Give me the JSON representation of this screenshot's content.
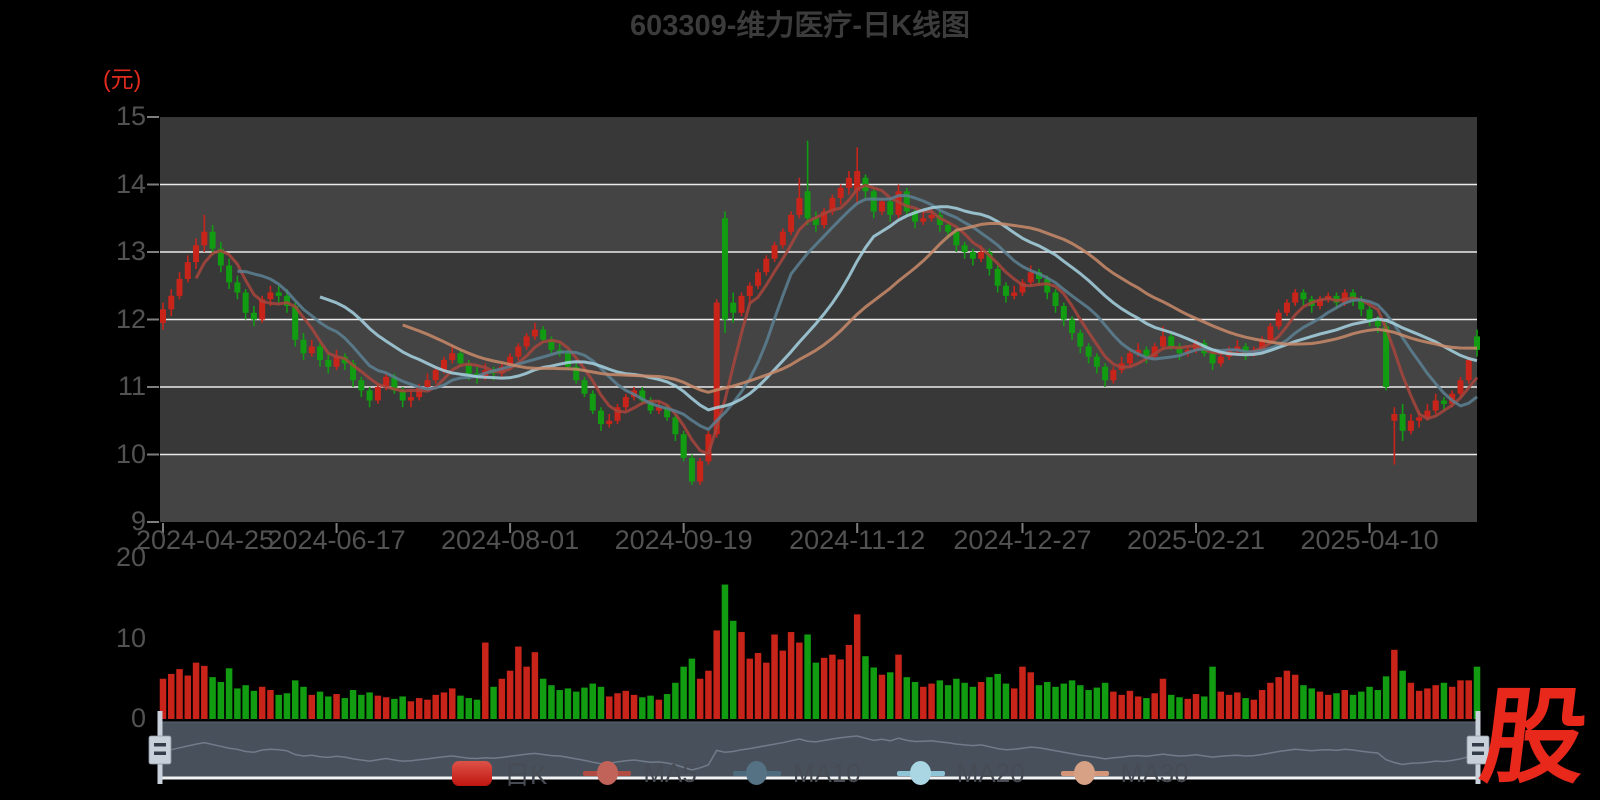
{
  "title": "603309-维力医疗-日K线图",
  "price_axis": {
    "unit_label": "(元)",
    "ticks": [
      15,
      14,
      13,
      12,
      11,
      10,
      9
    ]
  },
  "volume_axis": {
    "ticks": [
      20,
      10,
      0
    ]
  },
  "x_axis": {
    "tick_labels": [
      "2024-04-25",
      "2024-06-17",
      "2024-08-01",
      "2024-09-19",
      "2024-11-12",
      "2024-12-27",
      "2025-02-21",
      "2025-04-10"
    ],
    "tick_indices": [
      0,
      21,
      42,
      63,
      84,
      104,
      125,
      146
    ]
  },
  "legend": {
    "items": [
      {
        "label": "日K",
        "type": "candle",
        "swatch_colors": [
          "#dd5247",
          "#c01510"
        ]
      },
      {
        "label": "MA5",
        "type": "line",
        "line_color": "#b04c42",
        "dot_color": "#c2635a"
      },
      {
        "label": "MA10",
        "type": "line",
        "line_color": "#4e6b7e",
        "dot_color": "#557184"
      },
      {
        "label": "MA20",
        "type": "line",
        "line_color": "#8fc3d6",
        "dot_color": "#a9d6e2"
      },
      {
        "label": "MA30",
        "type": "line",
        "line_color": "#d39678",
        "dot_color": "#d6a184"
      }
    ]
  },
  "logo": {
    "text": "股",
    "color": "#e7281b"
  },
  "style": {
    "up_color": "#c9241a",
    "down_color": "#119c11",
    "band_dark": "#383838",
    "band_light": "#444444",
    "grid_color": "#ebebeb",
    "tick_color": "#7e7e7e",
    "axis_text_color": "#525252",
    "title_color": "#3b3b3b",
    "unit_color": "#e22b1c",
    "ma_colors": {
      "ma5": "#a8453c",
      "ma10": "#5c8093",
      "ma20": "#a6d4e2",
      "ma30": "#c98a6a"
    },
    "navigator_bg": "#48505c",
    "navigator_line": "#717b89",
    "navigator_border": "#f1f2f3",
    "handle_color": "#c8d0da",
    "handle_grip_color": "#333c49"
  },
  "chart_data": {
    "type": "candlestick",
    "title": "603309-维力医疗-日K线图",
    "ylabel": "(元)",
    "price_range": [
      9,
      15
    ],
    "volume_range": [
      0,
      20
    ],
    "grid": "horizontal-only",
    "legend_position": "bottom",
    "ma_periods": [
      5,
      10,
      20,
      30
    ],
    "x_tick_labels": [
      "2024-04-25",
      "2024-06-17",
      "2024-08-01",
      "2024-09-19",
      "2024-11-12",
      "2024-12-27",
      "2025-02-21",
      "2025-04-10"
    ],
    "x_tick_indices": [
      0,
      21,
      42,
      63,
      84,
      104,
      125,
      146
    ],
    "ohlcv_format": [
      "open",
      "high",
      "low",
      "close",
      "volume"
    ],
    "ohlcv": [
      [
        11.95,
        12.25,
        11.85,
        12.15,
        5.0
      ],
      [
        12.15,
        12.45,
        12.05,
        12.35,
        5.6
      ],
      [
        12.35,
        12.7,
        12.3,
        12.6,
        6.2
      ],
      [
        12.6,
        12.95,
        12.55,
        12.85,
        5.4
      ],
      [
        12.85,
        13.2,
        12.75,
        13.1,
        7.0
      ],
      [
        13.1,
        13.55,
        13.0,
        13.3,
        6.6
      ],
      [
        13.3,
        13.4,
        12.95,
        13.05,
        5.2
      ],
      [
        13.05,
        13.15,
        12.7,
        12.8,
        4.6
      ],
      [
        12.8,
        12.9,
        12.45,
        12.55,
        6.3
      ],
      [
        12.55,
        12.65,
        12.3,
        12.4,
        3.8
      ],
      [
        12.4,
        12.45,
        12.0,
        12.1,
        4.2
      ],
      [
        12.1,
        12.2,
        11.9,
        12.0,
        3.5
      ],
      [
        12.0,
        12.35,
        11.95,
        12.3,
        4.0
      ],
      [
        12.3,
        12.5,
        12.2,
        12.4,
        3.6
      ],
      [
        12.4,
        12.5,
        12.25,
        12.35,
        3.0
      ],
      [
        12.35,
        12.45,
        12.1,
        12.2,
        3.2
      ],
      [
        12.2,
        12.25,
        11.6,
        11.7,
        4.8
      ],
      [
        11.7,
        11.8,
        11.4,
        11.5,
        4.0
      ],
      [
        11.5,
        11.7,
        11.45,
        11.6,
        3.0
      ],
      [
        11.6,
        11.65,
        11.3,
        11.4,
        3.4
      ],
      [
        11.4,
        11.5,
        11.2,
        11.3,
        2.8
      ],
      [
        11.3,
        11.55,
        11.25,
        11.45,
        3.1
      ],
      [
        11.45,
        11.5,
        11.25,
        11.35,
        2.6
      ],
      [
        11.35,
        11.4,
        11.0,
        11.1,
        3.6
      ],
      [
        11.1,
        11.15,
        10.85,
        10.95,
        3.0
      ],
      [
        10.95,
        11.0,
        10.7,
        10.8,
        3.3
      ],
      [
        10.8,
        11.05,
        10.75,
        11.0,
        2.9
      ],
      [
        11.0,
        11.2,
        10.95,
        11.15,
        2.7
      ],
      [
        11.15,
        11.2,
        10.9,
        10.95,
        2.5
      ],
      [
        10.95,
        11.0,
        10.7,
        10.8,
        2.8
      ],
      [
        10.8,
        10.95,
        10.7,
        10.85,
        2.2
      ],
      [
        10.85,
        11.05,
        10.8,
        11.0,
        2.6
      ],
      [
        11.0,
        11.2,
        10.95,
        11.1,
        2.4
      ],
      [
        11.1,
        11.3,
        11.05,
        11.25,
        3.0
      ],
      [
        11.25,
        11.45,
        11.2,
        11.4,
        3.3
      ],
      [
        11.4,
        11.6,
        11.35,
        11.5,
        3.8
      ],
      [
        11.5,
        11.55,
        11.3,
        11.35,
        2.9
      ],
      [
        11.35,
        11.4,
        11.1,
        11.2,
        2.6
      ],
      [
        11.2,
        11.3,
        11.05,
        11.15,
        2.4
      ],
      [
        11.15,
        11.35,
        11.1,
        11.25,
        9.5
      ],
      [
        11.25,
        11.3,
        11.1,
        11.2,
        4.0
      ],
      [
        11.2,
        11.35,
        11.15,
        11.3,
        5.0
      ],
      [
        11.3,
        11.5,
        11.25,
        11.45,
        6.0
      ],
      [
        11.45,
        11.65,
        11.4,
        11.6,
        9.0
      ],
      [
        11.6,
        11.8,
        11.55,
        11.75,
        6.5
      ],
      [
        11.75,
        11.95,
        11.7,
        11.85,
        8.3
      ],
      [
        11.85,
        11.9,
        11.65,
        11.7,
        5.0
      ],
      [
        11.7,
        11.75,
        11.5,
        11.55,
        4.2
      ],
      [
        11.55,
        11.65,
        11.45,
        11.5,
        3.6
      ],
      [
        11.5,
        11.55,
        11.25,
        11.3,
        3.8
      ],
      [
        11.3,
        11.35,
        11.05,
        11.1,
        3.4
      ],
      [
        11.1,
        11.15,
        10.85,
        10.9,
        3.9
      ],
      [
        10.9,
        10.95,
        10.6,
        10.65,
        4.4
      ],
      [
        10.65,
        10.7,
        10.35,
        10.45,
        4.0
      ],
      [
        10.45,
        10.6,
        10.4,
        10.5,
        2.8
      ],
      [
        10.5,
        10.75,
        10.45,
        10.7,
        3.2
      ],
      [
        10.7,
        10.9,
        10.65,
        10.85,
        3.5
      ],
      [
        10.85,
        11.0,
        10.8,
        10.95,
        3.0
      ],
      [
        10.95,
        11.0,
        10.75,
        10.8,
        2.7
      ],
      [
        10.8,
        10.85,
        10.6,
        10.65,
        2.9
      ],
      [
        10.65,
        10.8,
        10.6,
        10.7,
        2.4
      ],
      [
        10.7,
        10.75,
        10.5,
        10.55,
        3.1
      ],
      [
        10.55,
        10.6,
        10.2,
        10.3,
        4.5
      ],
      [
        10.3,
        10.35,
        9.9,
        9.95,
        6.5
      ],
      [
        9.95,
        10.0,
        9.55,
        9.6,
        7.5
      ],
      [
        9.6,
        9.95,
        9.55,
        9.9,
        5.0
      ],
      [
        9.9,
        10.35,
        9.85,
        10.3,
        6.0
      ],
      [
        10.3,
        12.3,
        10.25,
        12.25,
        11.0
      ],
      [
        13.5,
        13.6,
        11.8,
        12.0,
        16.7
      ],
      [
        12.25,
        12.4,
        11.95,
        12.1,
        12.2
      ],
      [
        12.1,
        12.4,
        12.05,
        12.35,
        10.8
      ],
      [
        12.35,
        12.55,
        12.25,
        12.5,
        7.5
      ],
      [
        12.5,
        12.75,
        12.45,
        12.7,
        8.2
      ],
      [
        12.7,
        12.95,
        12.65,
        12.9,
        7.0
      ],
      [
        12.9,
        13.15,
        12.85,
        13.1,
        10.5
      ],
      [
        13.1,
        13.35,
        13.05,
        13.3,
        8.5
      ],
      [
        13.3,
        13.6,
        13.25,
        13.55,
        10.8
      ],
      [
        13.55,
        14.1,
        13.5,
        13.8,
        9.5
      ],
      [
        13.9,
        14.65,
        13.4,
        13.5,
        10.5
      ],
      [
        13.5,
        13.6,
        13.3,
        13.4,
        7.0
      ],
      [
        13.4,
        13.65,
        13.35,
        13.6,
        7.6
      ],
      [
        13.6,
        13.85,
        13.55,
        13.8,
        8.0
      ],
      [
        13.8,
        14.0,
        13.7,
        13.95,
        7.4
      ],
      [
        13.95,
        14.2,
        13.85,
        14.1,
        9.2
      ],
      [
        13.9,
        14.55,
        13.7,
        14.2,
        13.0
      ],
      [
        14.1,
        14.15,
        13.8,
        13.9,
        7.8
      ],
      [
        13.9,
        13.95,
        13.5,
        13.6,
        6.4
      ],
      [
        13.6,
        13.8,
        13.55,
        13.75,
        5.5
      ],
      [
        13.75,
        13.8,
        13.45,
        13.55,
        5.8
      ],
      [
        13.55,
        14.0,
        13.5,
        13.9,
        8.0
      ],
      [
        13.9,
        13.95,
        13.55,
        13.6,
        5.2
      ],
      [
        13.6,
        13.65,
        13.35,
        13.45,
        4.6
      ],
      [
        13.45,
        13.6,
        13.4,
        13.5,
        4.0
      ],
      [
        13.5,
        13.65,
        13.45,
        13.55,
        4.4
      ],
      [
        13.55,
        13.6,
        13.3,
        13.4,
        4.8
      ],
      [
        13.4,
        13.45,
        13.2,
        13.3,
        4.2
      ],
      [
        13.3,
        13.35,
        13.0,
        13.1,
        5.0
      ],
      [
        13.1,
        13.15,
        12.9,
        13.0,
        4.5
      ],
      [
        13.0,
        13.05,
        12.8,
        12.9,
        4.0
      ],
      [
        12.9,
        13.1,
        12.85,
        13.0,
        4.6
      ],
      [
        13.0,
        13.05,
        12.65,
        12.75,
        5.2
      ],
      [
        12.75,
        12.8,
        12.4,
        12.5,
        5.6
      ],
      [
        12.5,
        12.55,
        12.25,
        12.35,
        4.4
      ],
      [
        12.35,
        12.5,
        12.3,
        12.4,
        3.8
      ],
      [
        12.4,
        12.6,
        12.35,
        12.55,
        6.5
      ],
      [
        12.55,
        12.8,
        12.5,
        12.7,
        5.8
      ],
      [
        12.7,
        12.75,
        12.5,
        12.6,
        4.2
      ],
      [
        12.6,
        12.65,
        12.3,
        12.4,
        4.6
      ],
      [
        12.4,
        12.45,
        12.1,
        12.2,
        4.0
      ],
      [
        12.2,
        12.25,
        11.9,
        12.0,
        4.4
      ],
      [
        12.0,
        12.05,
        11.7,
        11.8,
        4.8
      ],
      [
        11.8,
        11.85,
        11.5,
        11.6,
        4.2
      ],
      [
        11.6,
        11.65,
        11.35,
        11.45,
        3.6
      ],
      [
        11.45,
        11.5,
        11.2,
        11.3,
        3.9
      ],
      [
        11.3,
        11.35,
        11.0,
        11.1,
        4.5
      ],
      [
        11.1,
        11.3,
        11.05,
        11.25,
        3.4
      ],
      [
        11.25,
        11.45,
        11.2,
        11.35,
        3.0
      ],
      [
        11.35,
        11.55,
        11.3,
        11.5,
        3.5
      ],
      [
        11.5,
        11.65,
        11.45,
        11.55,
        2.8
      ],
      [
        11.55,
        11.6,
        11.35,
        11.45,
        2.6
      ],
      [
        11.45,
        11.65,
        11.4,
        11.6,
        3.2
      ],
      [
        11.6,
        11.9,
        11.55,
        11.75,
        5.0
      ],
      [
        11.75,
        11.8,
        11.55,
        11.6,
        3.0
      ],
      [
        11.6,
        11.65,
        11.4,
        11.5,
        2.7
      ],
      [
        11.5,
        11.6,
        11.45,
        11.55,
        2.5
      ],
      [
        11.55,
        11.7,
        11.5,
        11.65,
        3.1
      ],
      [
        11.65,
        11.7,
        11.45,
        11.5,
        2.8
      ],
      [
        11.5,
        11.55,
        11.25,
        11.35,
        6.5
      ],
      [
        11.35,
        11.5,
        11.3,
        11.45,
        3.4
      ],
      [
        11.45,
        11.6,
        11.4,
        11.55,
        3.0
      ],
      [
        11.55,
        11.7,
        11.5,
        11.6,
        3.3
      ],
      [
        11.6,
        11.65,
        11.4,
        11.5,
        2.6
      ],
      [
        11.5,
        11.6,
        11.45,
        11.55,
        2.4
      ],
      [
        11.55,
        11.75,
        11.5,
        11.7,
        3.6
      ],
      [
        11.7,
        11.95,
        11.65,
        11.9,
        4.5
      ],
      [
        11.9,
        12.15,
        11.85,
        12.1,
        5.2
      ],
      [
        12.1,
        12.3,
        12.05,
        12.25,
        6.0
      ],
      [
        12.25,
        12.45,
        12.2,
        12.4,
        5.5
      ],
      [
        12.4,
        12.45,
        12.2,
        12.3,
        4.2
      ],
      [
        12.3,
        12.35,
        12.1,
        12.2,
        3.8
      ],
      [
        12.2,
        12.35,
        12.15,
        12.3,
        3.4
      ],
      [
        12.3,
        12.4,
        12.25,
        12.35,
        3.0
      ],
      [
        12.35,
        12.4,
        12.15,
        12.25,
        3.2
      ],
      [
        12.25,
        12.45,
        12.2,
        12.4,
        3.6
      ],
      [
        12.4,
        12.45,
        12.2,
        12.3,
        3.0
      ],
      [
        12.3,
        12.35,
        12.05,
        12.15,
        3.4
      ],
      [
        12.15,
        12.2,
        11.9,
        12.0,
        4.0
      ],
      [
        12.0,
        12.05,
        11.8,
        11.9,
        3.6
      ],
      [
        11.9,
        11.95,
        10.95,
        11.0,
        5.3
      ],
      [
        10.5,
        10.7,
        9.85,
        10.6,
        8.6
      ],
      [
        10.6,
        10.75,
        10.2,
        10.35,
        6.0
      ],
      [
        10.35,
        10.6,
        10.3,
        10.5,
        4.5
      ],
      [
        10.5,
        10.65,
        10.4,
        10.55,
        3.5
      ],
      [
        10.55,
        10.75,
        10.5,
        10.65,
        3.8
      ],
      [
        10.65,
        10.9,
        10.6,
        10.8,
        4.2
      ],
      [
        10.8,
        10.85,
        10.65,
        10.75,
        4.5
      ],
      [
        10.75,
        10.95,
        10.7,
        10.9,
        4.0
      ],
      [
        10.9,
        11.15,
        10.85,
        11.1,
        4.8
      ],
      [
        11.1,
        11.45,
        11.05,
        11.4,
        4.8
      ],
      [
        11.75,
        11.85,
        11.45,
        11.55,
        6.5
      ]
    ]
  }
}
